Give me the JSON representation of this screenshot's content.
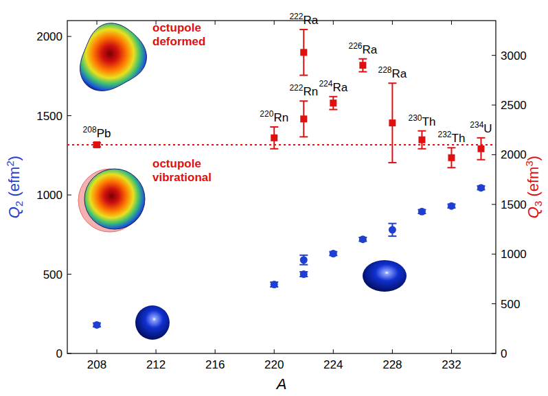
{
  "chart_data": {
    "type": "scatter",
    "xlabel": "A",
    "ylabel": "Q2 (efm2)",
    "y2label": "Q3 (efm3)",
    "x": [
      208,
      220,
      222,
      222,
      224,
      226,
      228,
      230,
      232,
      234
    ],
    "labels": [
      "208Pb",
      "220Rn",
      "222Rn",
      "222Ra",
      "224Ra",
      "226Ra",
      "228Ra",
      "230Th",
      "232Th",
      "234U"
    ],
    "annotations": [
      "octupole deformed",
      "octupole vibrational"
    ],
    "series": [
      {
        "color": "#1f3fd0",
        "marker": "circle",
        "axis": "y",
        "values": [
          180,
          435,
          500,
          590,
          630,
          720,
          780,
          895,
          930,
          1045
        ],
        "errors": [
          12,
          15,
          15,
          30,
          12,
          12,
          40,
          12,
          12,
          12
        ]
      },
      {
        "color": "#e01010",
        "marker": "square",
        "axis": "y2",
        "line_style": "dotted",
        "values": [
          2100,
          2170,
          2360,
          3030,
          2520,
          2900,
          2320,
          2150,
          1970,
          2060
        ],
        "errors": [
          20,
          110,
          180,
          230,
          65,
          65,
          400,
          90,
          100,
          110
        ]
      }
    ],
    "xlim": [
      206,
      235
    ],
    "xticks": [
      208,
      212,
      216,
      220,
      224,
      228,
      232
    ],
    "ylim": [
      0,
      2100
    ],
    "yticks": [
      0,
      500,
      1000,
      1500,
      2000
    ],
    "y2lim": [
      0,
      3350
    ],
    "y2ticks": [
      0,
      500,
      1000,
      1500,
      2000,
      2500,
      3000
    ],
    "grid": false
  }
}
